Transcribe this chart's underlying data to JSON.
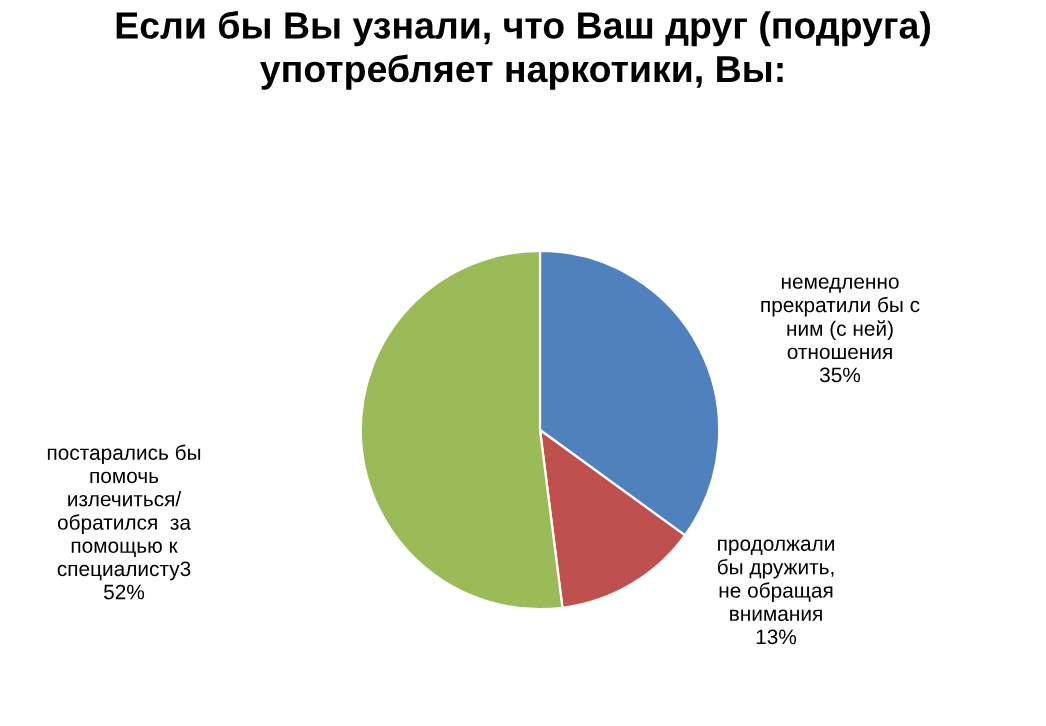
{
  "chart_data": {
    "type": "pie",
    "title": "Если бы Вы узнали, что Ваш друг (подруга)\nупотребляет наркотики, Вы:",
    "categories": [
      "немедленно\nпрекратили бы с\nним (с ней)\nотношения",
      "продолжали\nбы дружить,\nне обращая\nвнимания",
      "постарались бы\nпомочь\nизлечиться/\nобратился  за\nпомощью к\nспециалисту3"
    ],
    "values": [
      35,
      13,
      52
    ],
    "colors": [
      "#4f81bd",
      "#c0504d",
      "#9bbb59"
    ],
    "value_labels": [
      "35%",
      "13%",
      "52%"
    ],
    "legend": false
  }
}
